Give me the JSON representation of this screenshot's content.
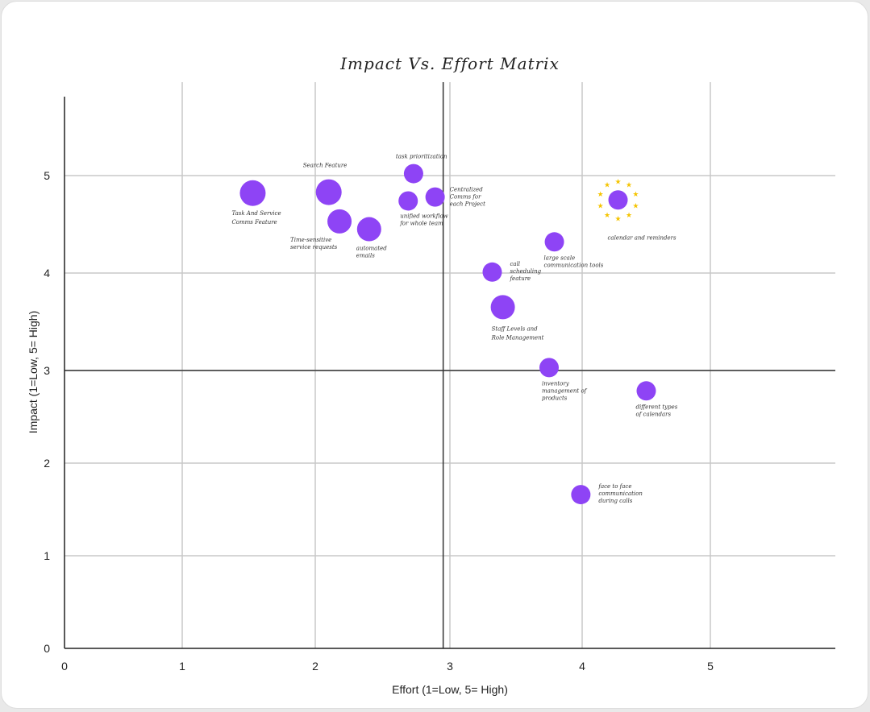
{
  "chart_data": {
    "type": "scatter",
    "title": "Impact Vs. Effort Matrix",
    "xlabel": "Effort (1=Low, 5= High)",
    "ylabel": "Impact (1=Low, 5= High)",
    "xlim": [
      0,
      5.9
    ],
    "ylim": [
      0,
      5.9
    ],
    "x_ticks": [
      0,
      1,
      2,
      3,
      4,
      5
    ],
    "y_ticks": [
      0,
      1,
      2,
      3,
      4,
      5
    ],
    "quadrant_lines": {
      "x": 2.95,
      "y": 3.0
    },
    "grid": true,
    "point_color": "#8e44f5",
    "highlight_color": "#f5c400",
    "points": [
      {
        "x": 1.53,
        "y": 4.82,
        "size": "large",
        "label": [
          "Task And Service",
          "Comms Feature"
        ]
      },
      {
        "x": 2.1,
        "y": 4.83,
        "size": "large",
        "label": [
          "Search Feature"
        ]
      },
      {
        "x": 2.18,
        "y": 4.53,
        "size": "medium",
        "label": [
          "Time-sensitive",
          "service requests"
        ]
      },
      {
        "x": 2.4,
        "y": 4.45,
        "size": "medium",
        "label": [
          "automated",
          "emails"
        ]
      },
      {
        "x": 2.73,
        "y": 5.02,
        "size": "small",
        "label": [
          "task prioritization"
        ]
      },
      {
        "x": 2.69,
        "y": 4.74,
        "size": "small",
        "label": [
          "unified workflow",
          "for whole team"
        ]
      },
      {
        "x": 2.89,
        "y": 4.78,
        "size": "small",
        "label": [
          "Centralized",
          "Comms for",
          "each Project"
        ]
      },
      {
        "x": 4.28,
        "y": 4.75,
        "size": "small",
        "highlight": true,
        "label": [
          "calendar and reminders"
        ]
      },
      {
        "x": 3.79,
        "y": 4.32,
        "size": "small",
        "label": [
          "large scale",
          "communication tools"
        ]
      },
      {
        "x": 3.32,
        "y": 4.01,
        "size": "small",
        "label": [
          "call",
          "scheduling",
          "feature"
        ]
      },
      {
        "x": 3.4,
        "y": 3.65,
        "size": "medium",
        "label": [
          "Staff Levels and",
          "Role Management"
        ]
      },
      {
        "x": 3.75,
        "y": 3.03,
        "size": "small",
        "label": [
          "inventory",
          "management of",
          "products"
        ]
      },
      {
        "x": 4.5,
        "y": 2.78,
        "size": "small",
        "label": [
          "different types",
          "of calendars"
        ]
      },
      {
        "x": 3.99,
        "y": 1.66,
        "size": "small",
        "label": [
          "face to face",
          "communication",
          "during calls"
        ]
      }
    ]
  }
}
